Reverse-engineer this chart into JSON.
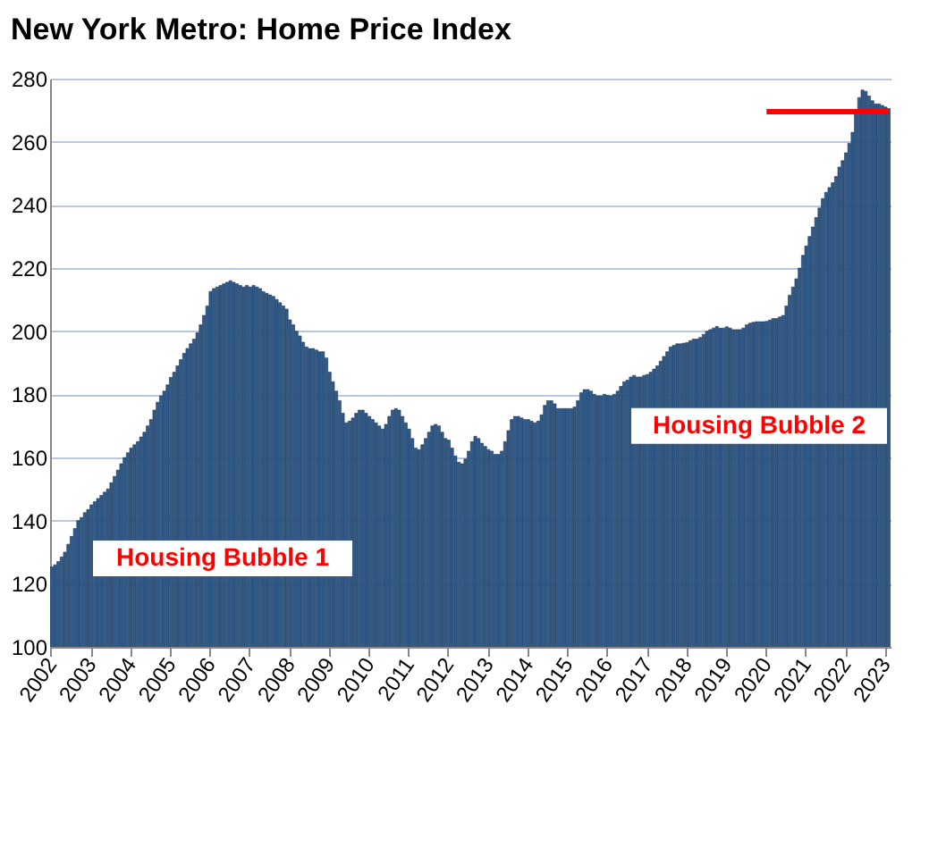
{
  "chart_data": {
    "type": "bar",
    "title": "New York Metro: Home Price Index",
    "categories": [
      "2002",
      null,
      null,
      null,
      null,
      null,
      null,
      null,
      null,
      null,
      null,
      null,
      "2003",
      null,
      null,
      null,
      null,
      null,
      null,
      null,
      null,
      null,
      null,
      null,
      "2004",
      null,
      null,
      null,
      null,
      null,
      null,
      null,
      null,
      null,
      null,
      null,
      "2005",
      null,
      null,
      null,
      null,
      null,
      null,
      null,
      null,
      null,
      null,
      null,
      "2006",
      null,
      null,
      null,
      null,
      null,
      null,
      null,
      null,
      null,
      null,
      null,
      "2007",
      null,
      null,
      null,
      null,
      null,
      null,
      null,
      null,
      null,
      null,
      null,
      "2008",
      null,
      null,
      null,
      null,
      null,
      null,
      null,
      null,
      null,
      null,
      null,
      "2009",
      null,
      null,
      null,
      null,
      null,
      null,
      null,
      null,
      null,
      null,
      null,
      "2010",
      null,
      null,
      null,
      null,
      null,
      null,
      null,
      null,
      null,
      null,
      null,
      "2011",
      null,
      null,
      null,
      null,
      null,
      null,
      null,
      null,
      null,
      null,
      null,
      "2012",
      null,
      null,
      null,
      null,
      null,
      null,
      null,
      null,
      null,
      null,
      null,
      "2013",
      null,
      null,
      null,
      null,
      null,
      null,
      null,
      null,
      null,
      null,
      null,
      "2014",
      null,
      null,
      null,
      null,
      null,
      null,
      null,
      null,
      null,
      null,
      null,
      "2015",
      null,
      null,
      null,
      null,
      null,
      null,
      null,
      null,
      null,
      null,
      null,
      "2016",
      null,
      null,
      null,
      null,
      null,
      null,
      null,
      null,
      null,
      null,
      null,
      "2017",
      null,
      null,
      null,
      null,
      null,
      null,
      null,
      null,
      null,
      null,
      null,
      "2018",
      null,
      null,
      null,
      null,
      null,
      null,
      null,
      null,
      null,
      null,
      null,
      "2019",
      null,
      null,
      null,
      null,
      null,
      null,
      null,
      null,
      null,
      null,
      null,
      "2020",
      null,
      null,
      null,
      null,
      null,
      null,
      null,
      null,
      null,
      null,
      null,
      "2021",
      null,
      null,
      null,
      null,
      null,
      null,
      null,
      null,
      null,
      null,
      null,
      "2022",
      null,
      null,
      null,
      null,
      null,
      null,
      null,
      null,
      null,
      null,
      null,
      "2023",
      null
    ],
    "series": [
      {
        "color": "#2f5a8c",
        "values": [
          125.3,
          126,
          127,
          128.5,
          130,
          132.5,
          135,
          137.5,
          140,
          141,
          142.5,
          143.5,
          145,
          146,
          147,
          148,
          149,
          150,
          152,
          154,
          156,
          158,
          160,
          161.5,
          163,
          164,
          165,
          166.5,
          168,
          170,
          172,
          175,
          177.5,
          179.5,
          181,
          183,
          185.4,
          187,
          189,
          191,
          193,
          194.5,
          196,
          197.5,
          199.5,
          202,
          205,
          208,
          212.6,
          213.5,
          214,
          214.5,
          215,
          215.5,
          216,
          215.5,
          215,
          214.5,
          214,
          214.5,
          214,
          214.5,
          214,
          213.5,
          212.5,
          212,
          211.5,
          211,
          210,
          209,
          208,
          207,
          203.6,
          202,
          200,
          198.5,
          196.5,
          195,
          194.5,
          194.5,
          194,
          193.5,
          193.5,
          191.5,
          187,
          184,
          181,
          178,
          174,
          171,
          171.5,
          172.5,
          174,
          175,
          175,
          174,
          173,
          172,
          171,
          170,
          169,
          170.5,
          173,
          175,
          175.5,
          175,
          173,
          171,
          169,
          166,
          163,
          162.5,
          164,
          166,
          168,
          170,
          170.5,
          170,
          168,
          166,
          165.5,
          163,
          160.5,
          158.5,
          158,
          159.5,
          162,
          165,
          166.7,
          166,
          164.5,
          163.5,
          162.5,
          162,
          161,
          161,
          162,
          165,
          168.5,
          172,
          173,
          173,
          172.5,
          172,
          172,
          171.5,
          171,
          171.5,
          173.5,
          176.5,
          178,
          178,
          177,
          175.5,
          175.5,
          175.5,
          175.5,
          175.5,
          176,
          178,
          180.5,
          181.5,
          181.5,
          181,
          180,
          179.5,
          179.5,
          180,
          179.7,
          179.5,
          180,
          181,
          182.5,
          184,
          184.5,
          185.5,
          186,
          185.5,
          185.5,
          186,
          186.3,
          187,
          188,
          189,
          190.5,
          192,
          193.5,
          195,
          195.5,
          196,
          196,
          196.2,
          196.4,
          197,
          197.5,
          197.5,
          198,
          199,
          200,
          200.5,
          201,
          201.5,
          201,
          201,
          201.4,
          201,
          200.5,
          200.5,
          200.5,
          201,
          202,
          202.5,
          202.8,
          203,
          203,
          203,
          203.1,
          203.5,
          204,
          204,
          204.5,
          205,
          208,
          211.4,
          214,
          216.6,
          220,
          224,
          227,
          230,
          233,
          236,
          239,
          242,
          244,
          245.5,
          247,
          249,
          252,
          254,
          256.5,
          259.5,
          263,
          269.5,
          274,
          276.4,
          276,
          274.5,
          273,
          272,
          272,
          271.5,
          271,
          270.5
        ]
      },
      {
        "type": "line",
        "color": "#ff0000",
        "values": [
          null,
          null,
          null,
          null,
          null,
          null,
          null,
          null,
          null,
          null,
          null,
          null,
          null,
          null,
          null,
          null,
          null,
          null,
          null,
          null,
          null,
          null,
          null,
          null,
          null,
          null,
          null,
          null,
          null,
          null,
          null,
          null,
          null,
          null,
          null,
          null,
          null,
          null,
          null,
          null,
          null,
          null,
          null,
          null,
          null,
          null,
          null,
          null,
          null,
          null,
          null,
          null,
          null,
          null,
          null,
          null,
          null,
          null,
          null,
          null,
          null,
          null,
          null,
          null,
          null,
          null,
          null,
          null,
          null,
          null,
          null,
          null,
          null,
          null,
          null,
          null,
          null,
          null,
          null,
          null,
          null,
          null,
          null,
          null,
          null,
          null,
          null,
          null,
          null,
          null,
          null,
          null,
          null,
          null,
          null,
          null,
          null,
          null,
          null,
          null,
          null,
          null,
          null,
          null,
          null,
          null,
          null,
          null,
          null,
          null,
          null,
          null,
          null,
          null,
          null,
          null,
          null,
          null,
          null,
          null,
          null,
          null,
          null,
          null,
          null,
          null,
          null,
          null,
          null,
          null,
          null,
          null,
          null,
          null,
          null,
          null,
          null,
          null,
          null,
          null,
          null,
          null,
          null,
          null,
          null,
          null,
          null,
          null,
          null,
          null,
          null,
          null,
          null,
          null,
          null,
          null,
          null,
          null,
          null,
          null,
          null,
          null,
          null,
          null,
          null,
          null,
          null,
          null,
          null,
          null,
          null,
          null,
          null,
          null,
          null,
          null,
          null,
          null,
          null,
          null,
          null,
          null,
          null,
          null,
          null,
          null,
          null,
          null,
          null,
          null,
          null,
          null,
          null,
          null,
          null,
          null,
          null,
          null,
          null,
          null,
          null,
          null,
          null,
          null,
          null,
          null,
          null,
          null,
          null,
          null,
          null,
          null,
          null,
          null,
          null,
          null,
          269.5,
          269.5,
          269.5,
          269.5,
          269.5,
          269.5,
          269.5,
          269.5,
          269.5,
          269.5,
          269.5,
          269.5,
          269.5,
          269.5,
          269.5,
          269.5,
          269.5,
          269.5,
          269.5,
          269.5,
          269.5,
          269.5,
          269.5,
          269.5,
          269.5,
          269.5,
          269.5,
          269.5,
          269.5,
          269.5,
          269.5,
          269.5,
          269.5,
          269.5,
          269.5,
          269.5,
          269.5,
          269.5
        ]
      }
    ],
    "annotations": [
      "Housing Bubble 1",
      "Housing Bubble 2"
    ],
    "ylim": [
      100,
      280
    ],
    "yticks": [
      100,
      120,
      140,
      160,
      180,
      200,
      220,
      240,
      260,
      280
    ],
    "grid": "y"
  }
}
